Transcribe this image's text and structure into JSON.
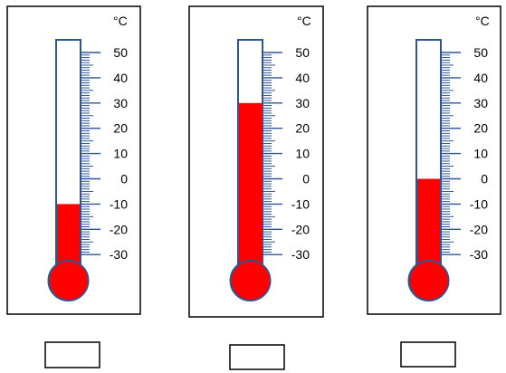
{
  "unit_label": "°C",
  "scale": {
    "min": -30,
    "max": 50,
    "major_step": 10,
    "labels": [
      "50",
      "40",
      "30",
      "20",
      "10",
      "0",
      "-10",
      "-20",
      "-30"
    ]
  },
  "thermometers": [
    {
      "reading": -10,
      "answer": ""
    },
    {
      "reading": 30,
      "answer": ""
    },
    {
      "reading": 0,
      "answer": ""
    }
  ],
  "colors": {
    "liquid": "#ff0000",
    "outline": "#2e5597",
    "ticks": "#2e5597",
    "frame": "#000000"
  }
}
